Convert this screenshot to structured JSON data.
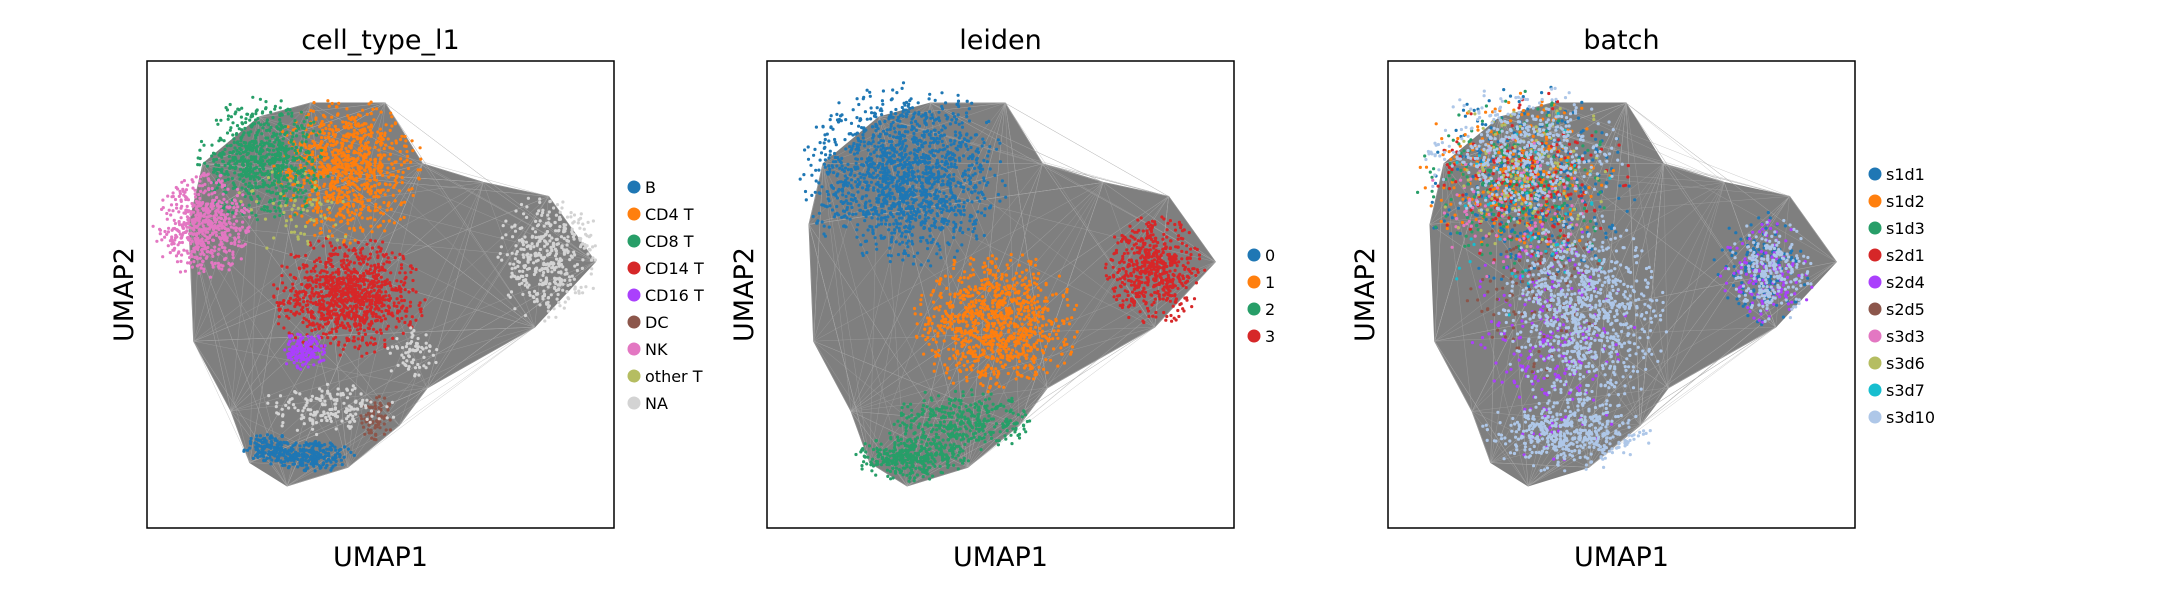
{
  "chart_data": [
    {
      "type": "scatter",
      "title": "cell_type_l1",
      "xlabel": "UMAP1",
      "ylabel": "UMAP2",
      "xlim": [
        0,
        10
      ],
      "ylim": [
        0,
        10
      ],
      "grid": false,
      "legend_position": "right",
      "colors": {
        "edges": "#7f7f7f",
        "NA": "#d3d3d3"
      },
      "series": [
        {
          "name": "B",
          "color": "#1f77b4",
          "clusters": [
            {
              "cx": 3.5,
              "cy": 1.55,
              "rx": 0.9,
              "ry": 0.3,
              "n": 260
            },
            {
              "cx": 2.6,
              "cy": 1.7,
              "rx": 0.5,
              "ry": 0.3,
              "n": 140
            }
          ]
        },
        {
          "name": "CD4 T",
          "color": "#ff7f0e",
          "clusters": [
            {
              "cx": 4.3,
              "cy": 7.7,
              "rx": 1.4,
              "ry": 1.4,
              "n": 900
            }
          ]
        },
        {
          "name": "CD8 T",
          "color": "#279e68",
          "clusters": [
            {
              "cx": 2.5,
              "cy": 7.9,
              "rx": 1.25,
              "ry": 1.2,
              "n": 700
            }
          ]
        },
        {
          "name": "CD14 T",
          "color": "#d62728",
          "clusters": [
            {
              "cx": 4.3,
              "cy": 4.95,
              "rx": 1.45,
              "ry": 1.15,
              "n": 1000
            }
          ]
        },
        {
          "name": "CD16 T",
          "color": "#aa40fc",
          "clusters": [
            {
              "cx": 3.35,
              "cy": 3.8,
              "rx": 0.45,
              "ry": 0.35,
              "n": 160
            }
          ]
        },
        {
          "name": "DC",
          "color": "#8c564b",
          "clusters": [
            {
              "cx": 4.9,
              "cy": 2.35,
              "rx": 0.35,
              "ry": 0.45,
              "n": 80
            }
          ]
        },
        {
          "name": "NK",
          "color": "#e377c2",
          "clusters": [
            {
              "cx": 1.2,
              "cy": 6.5,
              "rx": 0.95,
              "ry": 1.0,
              "n": 550
            }
          ]
        },
        {
          "name": "other T",
          "color": "#b5bd61",
          "clusters": [
            {
              "cx": 3.2,
              "cy": 6.8,
              "rx": 1.2,
              "ry": 0.9,
              "n": 60
            }
          ]
        },
        {
          "name": "NA",
          "color": "#d3d3d3",
          "clusters": [
            {
              "cx": 8.6,
              "cy": 5.8,
              "rx": 1.0,
              "ry": 1.25,
              "n": 420
            },
            {
              "cx": 3.9,
              "cy": 2.55,
              "rx": 1.3,
              "ry": 0.5,
              "n": 170
            },
            {
              "cx": 5.7,
              "cy": 3.7,
              "rx": 0.5,
              "ry": 0.55,
              "n": 70
            }
          ]
        }
      ]
    },
    {
      "type": "scatter",
      "title": "leiden",
      "xlabel": "UMAP1",
      "ylabel": "UMAP2",
      "xlim": [
        0,
        10
      ],
      "ylim": [
        0,
        10
      ],
      "grid": false,
      "legend_position": "right",
      "colors": {
        "edges": "#7f7f7f"
      },
      "series": [
        {
          "name": "0",
          "color": "#1f77b4",
          "clusters": [
            {
              "cx": 2.95,
              "cy": 7.55,
              "rx": 1.95,
              "ry": 1.75,
              "n": 1500
            }
          ]
        },
        {
          "name": "1",
          "color": "#ff7f0e",
          "clusters": [
            {
              "cx": 4.9,
              "cy": 4.4,
              "rx": 1.55,
              "ry": 1.35,
              "n": 950
            }
          ]
        },
        {
          "name": "2",
          "color": "#279e68",
          "clusters": [
            {
              "cx": 4.2,
              "cy": 2.3,
              "rx": 1.5,
              "ry": 0.6,
              "n": 350
            },
            {
              "cx": 3.1,
              "cy": 1.5,
              "rx": 1.1,
              "ry": 0.45,
              "n": 350
            }
          ]
        },
        {
          "name": "3",
          "color": "#d62728",
          "clusters": [
            {
              "cx": 8.3,
              "cy": 5.5,
              "rx": 0.95,
              "ry": 1.05,
              "n": 550
            }
          ]
        }
      ]
    },
    {
      "type": "scatter",
      "title": "batch",
      "xlabel": "UMAP1",
      "ylabel": "UMAP2",
      "xlim": [
        0,
        10
      ],
      "ylim": [
        0,
        10
      ],
      "grid": false,
      "legend_position": "right",
      "colors": {
        "edges": "#7f7f7f"
      },
      "series": [
        {
          "name": "s1d1",
          "color": "#1f77b4",
          "clusters": [
            {
              "cx": 3.0,
              "cy": 7.3,
              "rx": 2.0,
              "ry": 1.9,
              "n": 380
            },
            {
              "cx": 8.0,
              "cy": 5.6,
              "rx": 0.9,
              "ry": 1.1,
              "n": 130
            }
          ]
        },
        {
          "name": "s1d2",
          "color": "#ff7f0e",
          "clusters": [
            {
              "cx": 2.8,
              "cy": 7.6,
              "rx": 1.9,
              "ry": 1.6,
              "n": 300
            }
          ]
        },
        {
          "name": "s1d3",
          "color": "#279e68",
          "clusters": [
            {
              "cx": 2.8,
              "cy": 7.4,
              "rx": 1.9,
              "ry": 1.7,
              "n": 260
            }
          ]
        },
        {
          "name": "s2d1",
          "color": "#d62728",
          "clusters": [
            {
              "cx": 3.0,
              "cy": 7.5,
              "rx": 1.9,
              "ry": 1.7,
              "n": 200
            }
          ]
        },
        {
          "name": "s2d4",
          "color": "#aa40fc",
          "clusters": [
            {
              "cx": 3.5,
              "cy": 4.0,
              "rx": 1.6,
              "ry": 2.3,
              "n": 260
            },
            {
              "cx": 8.1,
              "cy": 5.5,
              "rx": 0.9,
              "ry": 1.0,
              "n": 140
            }
          ]
        },
        {
          "name": "s2d5",
          "color": "#8c564b",
          "clusters": [
            {
              "cx": 3.2,
              "cy": 5.2,
              "rx": 1.5,
              "ry": 1.8,
              "n": 120
            }
          ]
        },
        {
          "name": "s3d3",
          "color": "#e377c2",
          "clusters": [
            {
              "cx": 2.5,
              "cy": 6.8,
              "rx": 1.5,
              "ry": 1.4,
              "n": 120
            }
          ]
        },
        {
          "name": "s3d6",
          "color": "#b5bd61",
          "clusters": [
            {
              "cx": 3.0,
              "cy": 7.6,
              "rx": 1.8,
              "ry": 1.6,
              "n": 140
            }
          ]
        },
        {
          "name": "s3d7",
          "color": "#17becf",
          "clusters": [
            {
              "cx": 3.0,
              "cy": 6.8,
              "rx": 1.9,
              "ry": 2.0,
              "n": 60
            }
          ]
        },
        {
          "name": "s3d10",
          "color": "#aec7e8",
          "clusters": [
            {
              "cx": 4.2,
              "cy": 4.6,
              "rx": 1.6,
              "ry": 1.9,
              "n": 900
            },
            {
              "cx": 3.8,
              "cy": 2.0,
              "rx": 1.6,
              "ry": 0.7,
              "n": 450
            },
            {
              "cx": 2.9,
              "cy": 8.0,
              "rx": 1.9,
              "ry": 1.3,
              "n": 500
            },
            {
              "cx": 8.2,
              "cy": 5.5,
              "rx": 0.85,
              "ry": 1.0,
              "n": 250
            }
          ]
        }
      ]
    }
  ]
}
